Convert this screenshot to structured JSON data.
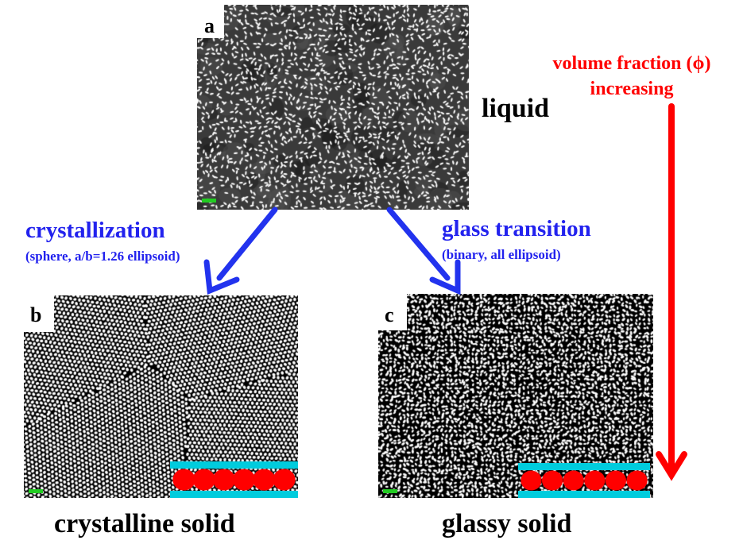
{
  "panels": {
    "a": {
      "letter": "a",
      "state_label": "liquid"
    },
    "b": {
      "letter": "b",
      "state_label": "crystalline solid"
    },
    "c": {
      "letter": "c",
      "state_label": "glassy solid"
    }
  },
  "transitions": {
    "crystallization": {
      "title": "crystallization",
      "subtitle": "(sphere, a/b=1.26 ellipsoid)"
    },
    "glass": {
      "title": "glass transition",
      "subtitle": "(binary, all ellipsoid)"
    }
  },
  "volume_fraction": {
    "line1": "volume fraction (ϕ)",
    "line2": "increasing"
  },
  "colors": {
    "arrow_blue": "#2233ee",
    "arrow_red": "#ff0000",
    "scale_bar": "#22cc22",
    "inset_bar": "#00ccdd",
    "inset_bead": "#ff0000",
    "background": "#ffffff",
    "particle": "#ffffff",
    "panel_bg": "#000000"
  },
  "insets": {
    "b": {
      "bead_count": 6,
      "bead_shape": "circle"
    },
    "c": {
      "bead_count": 6,
      "bead_shape": "circle"
    }
  }
}
